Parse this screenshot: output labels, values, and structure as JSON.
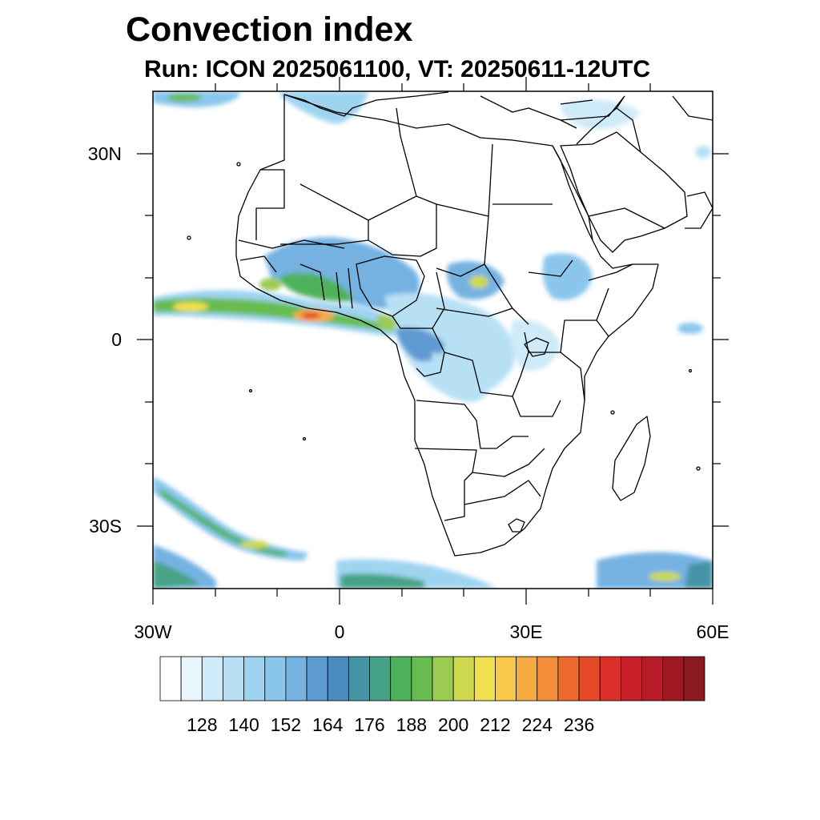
{
  "title": "Convection index",
  "subtitle": "Run: ICON 2025061100,  VT: 20250611-12UTC",
  "axes": {
    "lon_labels": [
      "30W",
      "0",
      "30E",
      "60E"
    ],
    "lat_labels": [
      "30N",
      "0",
      "30S"
    ]
  },
  "colorbar": {
    "labels": [
      "128",
      "140",
      "152",
      "164",
      "176",
      "188",
      "200",
      "212",
      "224",
      "236"
    ],
    "colors": [
      "#ffffff",
      "#e8f5fc",
      "#cfeaf8",
      "#b8e0f5",
      "#9fd4f1",
      "#8ac6ec",
      "#75b2e2",
      "#5e9bd2",
      "#4a8cc0",
      "#4693a6",
      "#46a286",
      "#4fb15b",
      "#67bb4f",
      "#9ccb52",
      "#cdd84f",
      "#f0e050",
      "#f8c84a",
      "#f6aa42",
      "#f48d38",
      "#ef6a2e",
      "#e44a2a",
      "#da3029",
      "#c81e2a",
      "#b81a28",
      "#a01822",
      "#8c1820"
    ]
  },
  "map": {
    "extent": {
      "lon_min": -30,
      "lon_max": 60,
      "lat_min": -40,
      "lat_max": 40
    },
    "ocean_color": "#ffffff",
    "border_color": "#000000"
  }
}
